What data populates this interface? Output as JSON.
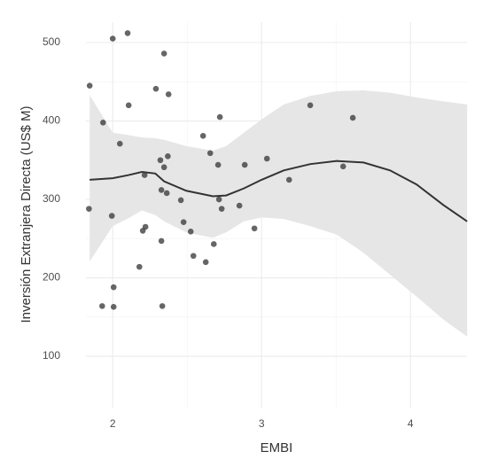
{
  "chart_data": {
    "type": "scatter",
    "x_label": "EMBI",
    "y_label": "Inversión Extranjera Directa (US$ M)",
    "xlim": [
      1.82,
      4.38
    ],
    "ylim": [
      34.5,
      526
    ],
    "xticks": [
      2,
      3,
      4
    ],
    "yticks": [
      100,
      200,
      300,
      400,
      500
    ],
    "grid": true,
    "color": "#333333",
    "x": [
      1.845,
      2.0,
      2.1,
      2.345,
      2.29,
      2.375,
      2.107,
      1.935,
      2.048,
      2.72,
      2.607,
      3.327,
      3.613,
      1.84,
      2.655,
      2.32,
      2.37,
      2.345,
      2.708,
      2.887,
      3.036,
      2.214,
      2.327,
      2.363,
      2.458,
      2.714,
      2.732,
      2.851,
      3.185,
      3.548,
      1.994,
      2.476,
      2.22,
      2.202,
      2.524,
      2.952,
      2.327,
      2.679,
      2.542,
      2.625,
      2.179,
      2.006,
      1.929,
      2.006,
      2.333
    ],
    "values": [
      445,
      505,
      512,
      486,
      441,
      434,
      420,
      398,
      371,
      405,
      381,
      420,
      404,
      288,
      359,
      350,
      355,
      341,
      344,
      344,
      352,
      331,
      312,
      308,
      299,
      300,
      288,
      292,
      325,
      342,
      279,
      271,
      265,
      260,
      259,
      263,
      247,
      243,
      228,
      220,
      214,
      188,
      164,
      163,
      164
    ],
    "smooth": {
      "color": "#333333",
      "band_color": "#e6e6e6",
      "x": [
        1.845,
        2.0,
        2.107,
        2.196,
        2.286,
        2.345,
        2.494,
        2.673,
        2.762,
        2.881,
        3.0,
        3.149,
        3.327,
        3.506,
        3.685,
        3.863,
        4.042,
        4.22,
        4.381
      ],
      "values": [
        325,
        327,
        331,
        335,
        333,
        323,
        311,
        304,
        305,
        314,
        325,
        337,
        345,
        349,
        347,
        337,
        319,
        293,
        272
      ],
      "upper": [
        433,
        385,
        382,
        379,
        378,
        376,
        368,
        362,
        368,
        385,
        402,
        421,
        432,
        438,
        439,
        436,
        430,
        425,
        421
      ],
      "lower": [
        221,
        266,
        276,
        286,
        280,
        272,
        258,
        251,
        258,
        272,
        277,
        275,
        266,
        255,
        232,
        204,
        176,
        147,
        125
      ]
    }
  }
}
